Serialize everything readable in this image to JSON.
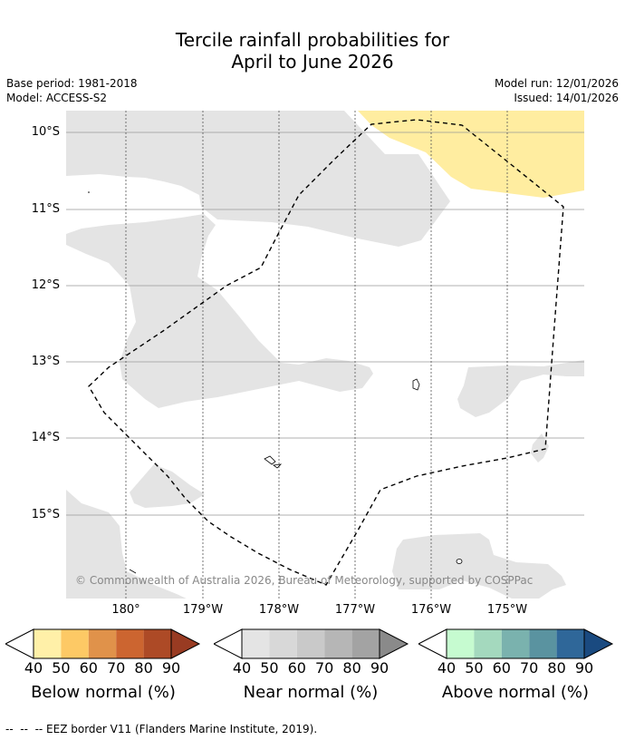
{
  "title_line1": "Tercile rainfall probabilities for",
  "title_line2": "April to June 2026",
  "base_period": "Base period: 1981-2018",
  "model": "Model: ACCESS-S2",
  "model_run": "Model run: 12/01/2026",
  "issued": "Issued: 14/01/2026",
  "lat_labels": [
    "10°S",
    "11°S",
    "12°S",
    "13°S",
    "14°S",
    "15°S"
  ],
  "lon_labels": [
    "180°",
    "179°W",
    "178°W",
    "177°W",
    "176°W",
    "175°W"
  ],
  "copyright": "© Commonwealth of Australia 2026, Bureau of Meteorology, supported by COSPPac",
  "colorbars": [
    {
      "title": "Below normal (%)",
      "colors": [
        "#fff0a8",
        "#fdc965",
        "#e0924a",
        "#cc6530",
        "#ad4a26",
        "#993b22"
      ],
      "ticks": [
        "40",
        "50",
        "60",
        "70",
        "80",
        "90"
      ]
    },
    {
      "title": "Near normal (%)",
      "colors": [
        "#e4e4e4",
        "#d8d8d8",
        "#c9c9c9",
        "#b6b6b6",
        "#a3a3a3",
        "#8a8a8a"
      ],
      "ticks": [
        "40",
        "50",
        "60",
        "70",
        "80",
        "90"
      ]
    },
    {
      "title": "Above normal (%)",
      "colors": [
        "#c6fbd0",
        "#a4d9be",
        "#7ab2ae",
        "#5a93a0",
        "#2f6799",
        "#1a4a80"
      ],
      "ticks": [
        "40",
        "50",
        "60",
        "70",
        "80",
        "90"
      ]
    }
  ],
  "footer": "--  --  -- EEZ border V11 (Flanders Marine Institute, 2019).",
  "colors": {
    "near_normal_fill": "#e4e4e4",
    "below_normal_fill": "#ffeda0"
  }
}
